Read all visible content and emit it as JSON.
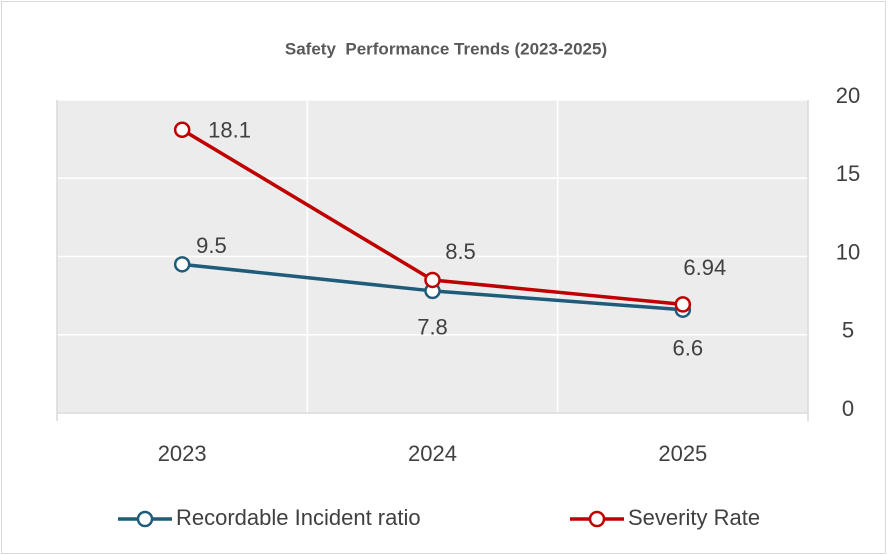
{
  "chart_data": {
    "type": "line",
    "title": "Safety  Performance Trends (2023-2025)",
    "categories": [
      "2023",
      "2024",
      "2025"
    ],
    "series": [
      {
        "name": "Recordable Incident ratio",
        "color": "#1f5c7a",
        "values": [
          9.5,
          7.8,
          6.6
        ]
      },
      {
        "name": "Severity Rate",
        "color": "#c00000",
        "values": [
          18.1,
          8.5,
          6.94
        ]
      }
    ],
    "ylim": [
      0,
      20
    ],
    "yticks": [
      0,
      5,
      10,
      15,
      20
    ],
    "y_axis_side": "right",
    "grid": true,
    "legend": "bottom"
  }
}
